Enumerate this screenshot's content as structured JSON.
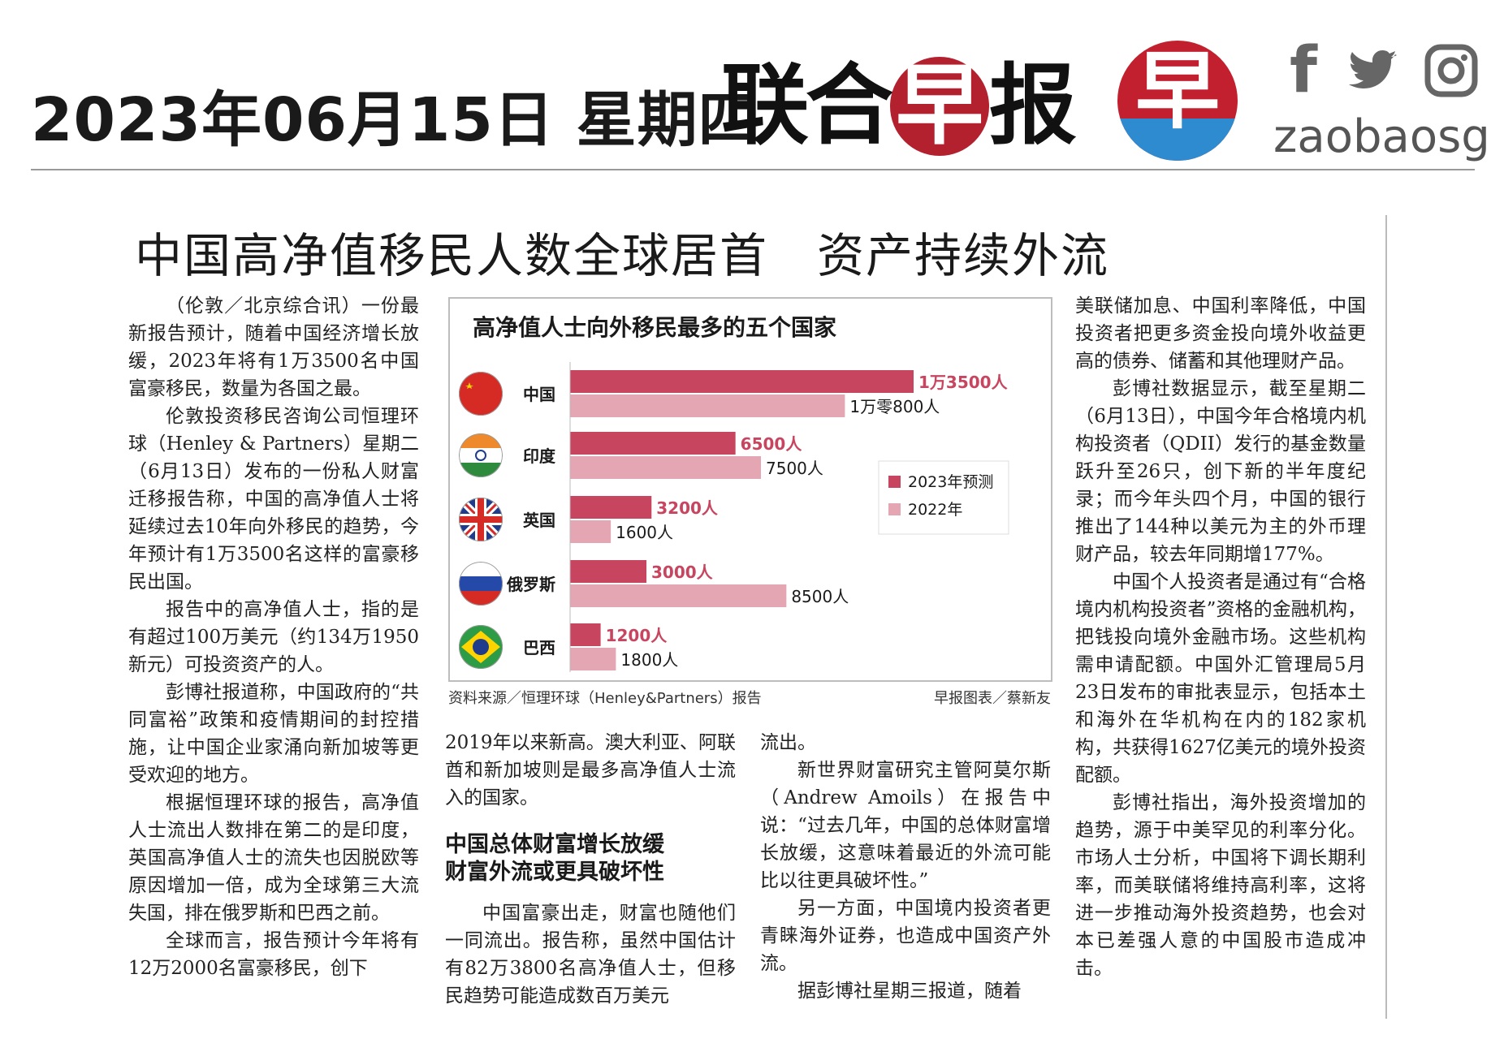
{
  "masthead": {
    "date": "2023年06月15日 星期四",
    "brand_a": "联合",
    "brand_highlight": "早",
    "brand_b": "报",
    "logo_glyph": "早",
    "social_handle": "zaobaosg",
    "brand_red": "#b3202e",
    "logo_blue": "#2f8bd0"
  },
  "article": {
    "headline": "中国高净值移民人数全球居首　资产持续外流",
    "col1_paragraphs": [
      "（伦敦／北京综合讯）一份最新报告预计，随着中国经济增长放缓，2023年将有1万3500名中国富豪移民，数量为各国之最。",
      "伦敦投资移民咨询公司恒理环球（Henley & Partners）星期二（6月13日）发布的一份私人财富迁移报告称，中国的高净值人士将延续过去10年向外移民的趋势，今年预计有1万3500名这样的富豪移民出国。",
      "报告中的高净值人士，指的是有超过100万美元（约134万1950新元）可投资资产的人。",
      "彭博社报道称，中国政府的“共同富裕”政策和疫情期间的封控措施，让中国企业家涌向新加坡等更受欢迎的地方。",
      "根据恒理环球的报告，高净值人士流出人数排在第二的是印度，英国高净值人士的流失也因脱欧等原因增加一倍，成为全球第三大流失国，排在俄罗斯和巴西之前。",
      "全球而言，报告预计今年将有12万2000名富豪移民，创下"
    ],
    "col2_lead": "2019年以来新高。澳大利亚、阿联酋和新加坡则是最多高净值人士流入的国家。",
    "subhead_line1": "中国总体财富增长放缓",
    "subhead_line2": "财富外流或更具破坏性",
    "col2_body": "中国富豪出走，财富也随他们一同流出。报告称，虽然中国估计有82万3800名高净值人士，但移民趋势可能造成数百万美元",
    "col3_paragraphs": [
      "流出。",
      "新世界财富研究主管阿莫尔斯（Andrew Amoils）在报告中说：“过去几年，中国的总体财富增长放缓，这意味着最近的外流可能比以往更具破坏性。”",
      "另一方面，中国境内投资者更青睐海外证券，也造成中国资产外流。",
      "据彭博社星期三报道，随着"
    ],
    "col4_paragraphs": [
      "美联储加息、中国利率降低，中国投资者把更多资金投向境外收益更高的债券、储蓄和其他理财产品。",
      "彭博社数据显示，截至星期二（6月13日），中国今年合格境内机构投资者（QDII）发行的基金数量跃升至26只，创下新的半年度纪录；而今年头四个月，中国的银行推出了144种以美元为主的外币理财产品，较去年同期增177%。",
      "中国个人投资者是通过有“合格境内机构投资者”资格的金融机构，把钱投向境外金融市场。这些机构需申请配额。中国外汇管理局5月23日发布的审批表显示，包括本土和海外在华机构在内的182家机构，共获得1627亿美元的境外投资配额。",
      "彭博社指出，海外投资增加的趋势，源于中美罕见的利率分化。市场人士分析，中国将下调长期利率，而美联储将维持高利率，这将进一步推动海外投资趋势，也会对本已差强人意的中国股市造成冲击。"
    ]
  },
  "chart_data": {
    "type": "bar",
    "orientation": "horizontal",
    "title": "高净值人士向外移民最多的五个国家",
    "categories": [
      "中国",
      "印度",
      "英国",
      "俄罗斯",
      "巴西"
    ],
    "flags": [
      "china-flag-icon",
      "india-flag-icon",
      "uk-flag-icon",
      "russia-flag-icon",
      "brazil-flag-icon"
    ],
    "series": [
      {
        "name": "2023年预测",
        "color": "#c84560",
        "values": [
          13500,
          6500,
          3200,
          3000,
          1200
        ],
        "labels": [
          "1万3500人",
          "6500人",
          "3200人",
          "3000人",
          "1200人"
        ]
      },
      {
        "name": "2022年",
        "color": "#e3a6b2",
        "values": [
          10800,
          7500,
          1600,
          8500,
          1800
        ],
        "labels": [
          "1万零800人",
          "7500人",
          "1600人",
          "8500人",
          "1800人"
        ]
      }
    ],
    "xlim": [
      0,
      15000
    ],
    "legend": "right",
    "source": "资料来源／恒理环球（Henley&Partners）报告",
    "credit": "早报图表／蔡新友"
  }
}
